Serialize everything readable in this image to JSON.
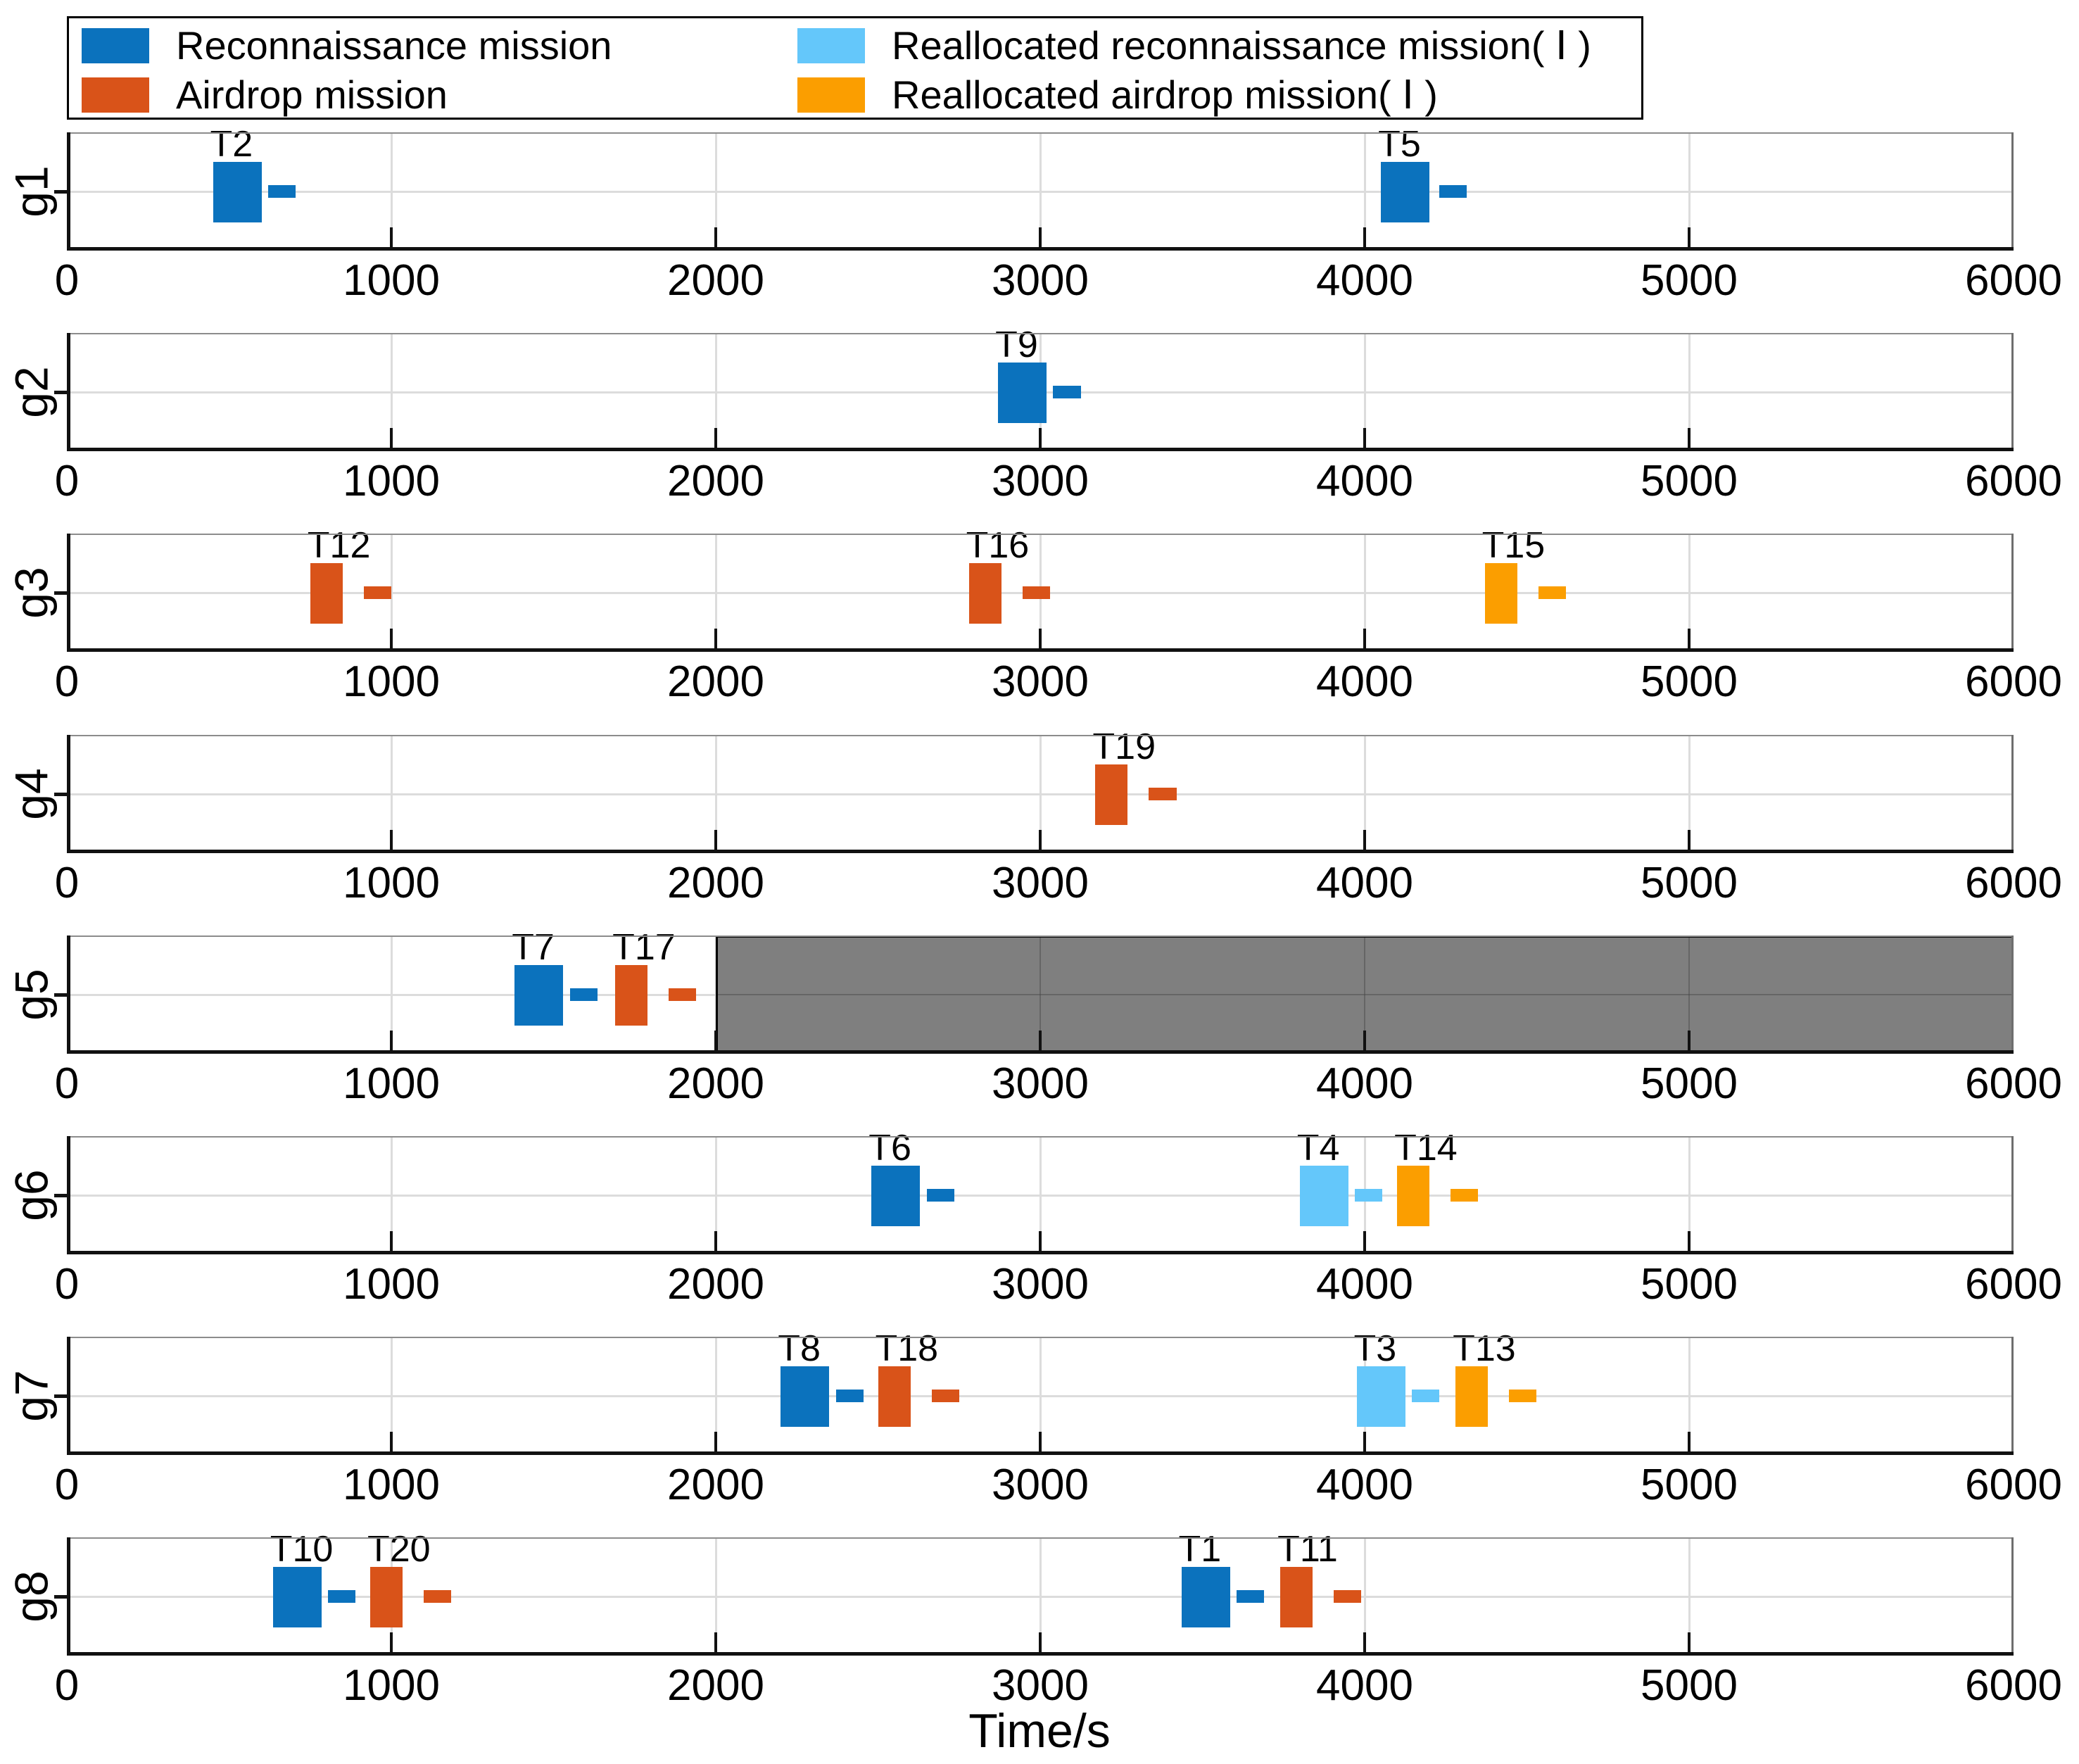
{
  "chart_data": {
    "type": "bar",
    "subtype": "gantt-mission-schedule",
    "title": "",
    "xlabel": "Time/s",
    "ylabel": "",
    "x_range": [
      0,
      6000
    ],
    "x_ticks": [
      0,
      1000,
      2000,
      3000,
      4000,
      5000,
      6000
    ],
    "grid": true,
    "legend_position": "top-left",
    "blocked_color": "#7F7F7F",
    "legend": [
      {
        "key": "recon",
        "label": "Reconnaissance mission",
        "color": "#0B72BD"
      },
      {
        "key": "airdrop",
        "label": "Airdrop mission",
        "color": "#D95319"
      },
      {
        "key": "realloc_recon",
        "label": "Reallocated reconnaissance mission( Ⅰ )",
        "color": "#64C7FA"
      },
      {
        "key": "realloc_airdrop",
        "label": "Reallocated airdrop mission( Ⅰ )",
        "color": "#FB9E00"
      }
    ],
    "rows": [
      {
        "label": "g1",
        "tasks": [
          {
            "label": "T2",
            "type": "recon",
            "start": 450,
            "duration": 150,
            "dash_start": 620,
            "dash_duration": 85
          },
          {
            "label": "T5",
            "type": "recon",
            "start": 4050,
            "duration": 150,
            "dash_start": 4230,
            "dash_duration": 85
          }
        ]
      },
      {
        "label": "g2",
        "tasks": [
          {
            "label": "T9",
            "type": "recon",
            "start": 2870,
            "duration": 150,
            "dash_start": 3040,
            "dash_duration": 85
          }
        ]
      },
      {
        "label": "g3",
        "tasks": [
          {
            "label": "T12",
            "type": "airdrop",
            "start": 750,
            "duration": 100,
            "dash_start": 915,
            "dash_duration": 85
          },
          {
            "label": "T16",
            "type": "airdrop",
            "start": 2780,
            "duration": 100,
            "dash_start": 2945,
            "dash_duration": 85
          },
          {
            "label": "T15",
            "type": "realloc_airdrop",
            "start": 4370,
            "duration": 100,
            "dash_start": 4535,
            "dash_duration": 85
          }
        ]
      },
      {
        "label": "g4",
        "tasks": [
          {
            "label": "T19",
            "type": "airdrop",
            "start": 3170,
            "duration": 100,
            "dash_start": 3335,
            "dash_duration": 85
          }
        ]
      },
      {
        "label": "g5",
        "blocked": {
          "from": 2000,
          "to": 6000
        },
        "tasks": [
          {
            "label": "T7",
            "type": "recon",
            "start": 1380,
            "duration": 150,
            "dash_start": 1550,
            "dash_duration": 85
          },
          {
            "label": "T17",
            "type": "airdrop",
            "start": 1690,
            "duration": 100,
            "dash_start": 1855,
            "dash_duration": 85
          }
        ]
      },
      {
        "label": "g6",
        "tasks": [
          {
            "label": "T6",
            "type": "recon",
            "start": 2480,
            "duration": 150,
            "dash_start": 2650,
            "dash_duration": 85
          },
          {
            "label": "T4",
            "type": "realloc_recon",
            "start": 3800,
            "duration": 150,
            "dash_start": 3970,
            "dash_duration": 85
          },
          {
            "label": "T14",
            "type": "realloc_airdrop",
            "start": 4100,
            "duration": 100,
            "dash_start": 4265,
            "dash_duration": 85
          }
        ]
      },
      {
        "label": "g7",
        "tasks": [
          {
            "label": "T8",
            "type": "recon",
            "start": 2200,
            "duration": 150,
            "dash_start": 2370,
            "dash_duration": 85
          },
          {
            "label": "T18",
            "type": "airdrop",
            "start": 2500,
            "duration": 100,
            "dash_start": 2665,
            "dash_duration": 85
          },
          {
            "label": "T3",
            "type": "realloc_recon",
            "start": 3975,
            "duration": 150,
            "dash_start": 4145,
            "dash_duration": 85
          },
          {
            "label": "T13",
            "type": "realloc_airdrop",
            "start": 4280,
            "duration": 100,
            "dash_start": 4445,
            "dash_duration": 85
          }
        ]
      },
      {
        "label": "g8",
        "tasks": [
          {
            "label": "T10",
            "type": "recon",
            "start": 635,
            "duration": 150,
            "dash_start": 805,
            "dash_duration": 85
          },
          {
            "label": "T20",
            "type": "airdrop",
            "start": 935,
            "duration": 100,
            "dash_start": 1100,
            "dash_duration": 85
          },
          {
            "label": "T1",
            "type": "recon",
            "start": 3435,
            "duration": 150,
            "dash_start": 3605,
            "dash_duration": 85
          },
          {
            "label": "T11",
            "type": "airdrop",
            "start": 3740,
            "duration": 100,
            "dash_start": 3905,
            "dash_duration": 85
          }
        ]
      }
    ]
  }
}
